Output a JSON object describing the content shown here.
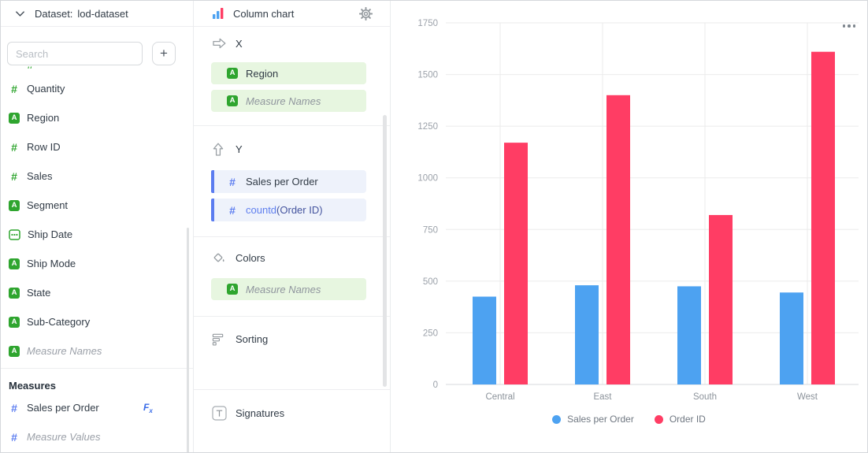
{
  "ui_colors": {
    "dimension_green": "#2FA52F",
    "measure_blue": "#5B7CF0",
    "pill_green_bg": "#E7F6E0",
    "pill_blue_bg": "#EEF2FB",
    "series_blue": "#4DA2F1",
    "series_red": "#FF3D64"
  },
  "left_panel": {
    "header": {
      "label": "Dataset:",
      "dataset_name": "lod-dataset"
    },
    "search_placeholder": "Search",
    "add_button": "+",
    "fields": [
      {
        "label": "Quantity",
        "type": "number"
      },
      {
        "label": "Region",
        "type": "string"
      },
      {
        "label": "Row ID",
        "type": "number"
      },
      {
        "label": "Sales",
        "type": "number"
      },
      {
        "label": "Segment",
        "type": "string"
      },
      {
        "label": "Ship Date",
        "type": "date"
      },
      {
        "label": "Ship Mode",
        "type": "string"
      },
      {
        "label": "State",
        "type": "string"
      },
      {
        "label": "Sub-Category",
        "type": "string"
      },
      {
        "label": "Measure Names",
        "type": "string",
        "italic": true
      }
    ],
    "measures_header": "Measures",
    "measures": [
      {
        "label": "Sales per Order",
        "type": "number",
        "formula": true
      },
      {
        "label": "Measure Values",
        "type": "number",
        "italic": true
      }
    ]
  },
  "config_panel": {
    "title": "Column chart",
    "x_section": {
      "label": "X",
      "fields": [
        {
          "label": "Region",
          "type": "string"
        },
        {
          "label": "Measure Names",
          "type": "string",
          "italic": true
        }
      ]
    },
    "y_section": {
      "label": "Y",
      "fields": [
        {
          "label": "Sales per Order",
          "type": "number"
        },
        {
          "fn": "countd",
          "arg": "(Order ID)",
          "type": "number"
        }
      ]
    },
    "colors_section": {
      "label": "Colors",
      "fields": [
        {
          "label": "Measure Names",
          "type": "string",
          "italic": true
        }
      ]
    },
    "sorting_section": {
      "label": "Sorting"
    },
    "signatures_section": {
      "label": "Signatures"
    }
  },
  "chart_data": {
    "type": "bar",
    "title": "",
    "xlabel": "",
    "ylabel": "",
    "categories": [
      "Central",
      "East",
      "South",
      "West"
    ],
    "series": [
      {
        "name": "Sales per Order",
        "color": "#4DA2F1",
        "values": [
          425,
          480,
          475,
          445
        ]
      },
      {
        "name": "Order ID",
        "color": "#FF3D64",
        "values": [
          1170,
          1400,
          820,
          1610
        ]
      }
    ],
    "ylim": [
      0,
      1750
    ],
    "ytick_step": 250,
    "grid": true,
    "legend_position": "bottom"
  }
}
